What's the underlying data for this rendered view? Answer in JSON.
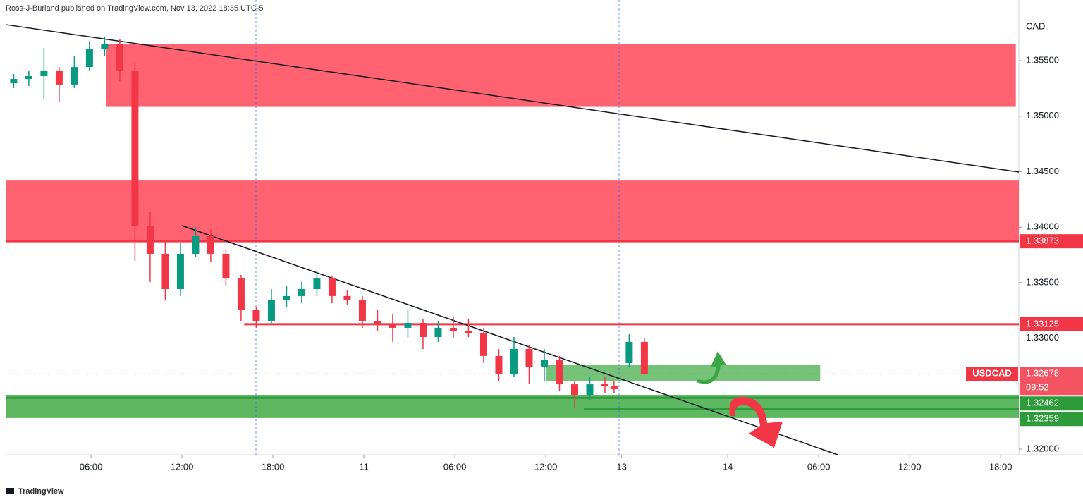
{
  "header": "Ross-J-Burland published on TradingView.com, Nov 13, 2022 18:35 UTC-5",
  "footer": "TradingView",
  "chart_data": {
    "type": "candlestick",
    "currency": "CAD",
    "symbol": "USDCAD",
    "countdown": "09:52",
    "last_price": 1.32678,
    "up_color": "#089981",
    "down_color": "#f23645",
    "xlim": [
      0.37,
      67.2
    ],
    "ylim": [
      1.31949,
      1.36047
    ],
    "xticks": [
      {
        "value": 6,
        "label": "06:00"
      },
      {
        "value": 12,
        "label": "12:00"
      },
      {
        "value": 18,
        "label": "18:00"
      },
      {
        "value": 24,
        "label": "11"
      },
      {
        "value": 30,
        "label": "06:00"
      },
      {
        "value": 36,
        "label": "12:00"
      },
      {
        "value": 41,
        "label": "13"
      },
      {
        "value": 48,
        "label": "14"
      },
      {
        "value": 54,
        "label": "06:00"
      },
      {
        "value": 60,
        "label": "12:00"
      },
      {
        "value": 66,
        "label": "18:00"
      }
    ],
    "yticks": [
      {
        "value": 1.32,
        "label": "1.32000"
      },
      {
        "value": 1.33,
        "label": "1.33000"
      },
      {
        "value": 1.335,
        "label": "1.33500"
      },
      {
        "value": 1.34,
        "label": "1.34000"
      },
      {
        "value": 1.345,
        "label": "1.34500"
      },
      {
        "value": 1.35,
        "label": "1.35000"
      },
      {
        "value": 1.355,
        "label": "1.35500"
      }
    ],
    "x": [
      0.9,
      1.9,
      2.9,
      3.9,
      4.9,
      5.9,
      6.9,
      7.9,
      8.9,
      9.9,
      10.9,
      11.9,
      12.9,
      13.9,
      14.9,
      15.9,
      16.9,
      17.9,
      18.9,
      19.9,
      20.9,
      21.9,
      22.9,
      23.9,
      24.9,
      25.9,
      26.9,
      27.9,
      28.9,
      29.9,
      30.9,
      31.9,
      32.9,
      33.9,
      34.9,
      35.9,
      36.9,
      37.9,
      38.9,
      39.9,
      40.5,
      41.5,
      42.5
    ],
    "open": [
      1.35297,
      1.35335,
      1.35361,
      1.35412,
      1.35285,
      1.35443,
      1.35602,
      1.35653,
      1.35412,
      1.34014,
      1.3376,
      1.33442,
      1.3376,
      1.33919,
      1.3376,
      1.33537,
      1.33252,
      1.33156,
      1.33347,
      1.33379,
      1.33442,
      1.33537,
      1.33379,
      1.33347,
      1.33156,
      1.33124,
      1.33093,
      1.33137,
      1.3301,
      1.33093,
      1.33061,
      1.33048,
      1.32839,
      1.3268,
      1.32902,
      1.32743,
      1.32807,
      1.32584,
      1.32489,
      1.32584,
      1.32565,
      1.32775,
      1.32966
    ],
    "high": [
      1.3538,
      1.35412,
      1.35615,
      1.35443,
      1.35539,
      1.35678,
      1.35717,
      1.35697,
      1.35475,
      1.34141,
      1.33887,
      1.33855,
      1.34001,
      1.33982,
      1.33792,
      1.33569,
      1.33283,
      1.33442,
      1.33474,
      1.33506,
      1.33601,
      1.33557,
      1.33429,
      1.33379,
      1.33252,
      1.3322,
      1.33252,
      1.33175,
      1.33156,
      1.33188,
      1.33175,
      1.33093,
      1.32902,
      1.3301,
      1.32934,
      1.32902,
      1.32839,
      1.32616,
      1.32648,
      1.32648,
      1.32616,
      1.33036,
      1.32997
    ],
    "low": [
      1.35253,
      1.35272,
      1.35157,
      1.35126,
      1.35253,
      1.35412,
      1.35539,
      1.35316,
      1.33696,
      1.33506,
      1.33347,
      1.33379,
      1.33728,
      1.33684,
      1.33474,
      1.33156,
      1.33093,
      1.33124,
      1.33283,
      1.33315,
      1.33379,
      1.33315,
      1.33302,
      1.33093,
      1.33061,
      1.32966,
      1.32997,
      1.32902,
      1.32966,
      1.32997,
      1.3301,
      1.32775,
      1.32616,
      1.32648,
      1.32584,
      1.32616,
      1.32521,
      1.32375,
      1.32438,
      1.32502,
      1.32502,
      1.32743,
      1.3268
    ],
    "close": [
      1.35335,
      1.35361,
      1.35412,
      1.35285,
      1.35443,
      1.35602,
      1.35653,
      1.35412,
      1.34014,
      1.3376,
      1.33442,
      1.3376,
      1.33919,
      1.3376,
      1.33537,
      1.33252,
      1.33156,
      1.33347,
      1.33379,
      1.33442,
      1.33537,
      1.33379,
      1.33347,
      1.33156,
      1.33124,
      1.33093,
      1.33137,
      1.3301,
      1.33093,
      1.33061,
      1.33048,
      1.32839,
      1.3268,
      1.32902,
      1.32743,
      1.32807,
      1.32584,
      1.32489,
      1.32584,
      1.32565,
      1.3254,
      1.32966,
      1.32678
    ],
    "zones": [
      {
        "from": 1.35084,
        "to": 1.35649,
        "x_from": 7.0,
        "x_to": 67.0,
        "color": "#ff5263"
      },
      {
        "from": 1.33873,
        "to": 1.3442,
        "x_from": 0.37,
        "x_to": 67.2,
        "color": "#ff5263"
      },
      {
        "from": 1.32616,
        "to": 1.32762,
        "x_from": 36.0,
        "x_to": 54.1,
        "color": "#66bb6a"
      },
      {
        "from": 1.3228,
        "to": 1.32489,
        "x_from": 0.37,
        "x_to": 67.2,
        "color": "#4caf50"
      }
    ],
    "levels": [
      {
        "value": 1.33873,
        "from": 0.37,
        "color": "#f23645"
      },
      {
        "value": 1.33125,
        "from": 16.1,
        "color": "#f23645"
      },
      {
        "value": 1.32462,
        "from": 0.37,
        "color": "#2e9b3a"
      },
      {
        "value": 1.32359,
        "from": 38.5,
        "color": "#2e9b3a"
      }
    ],
    "trendlines": [
      {
        "x": [
          0.37,
          67.2
        ],
        "y": [
          1.35825,
          1.34497
        ]
      },
      {
        "x": [
          12.0,
          55.25
        ],
        "y": [
          1.34014,
          1.31949
        ]
      }
    ],
    "session_breaks": [
      16.88,
      40.83
    ]
  }
}
